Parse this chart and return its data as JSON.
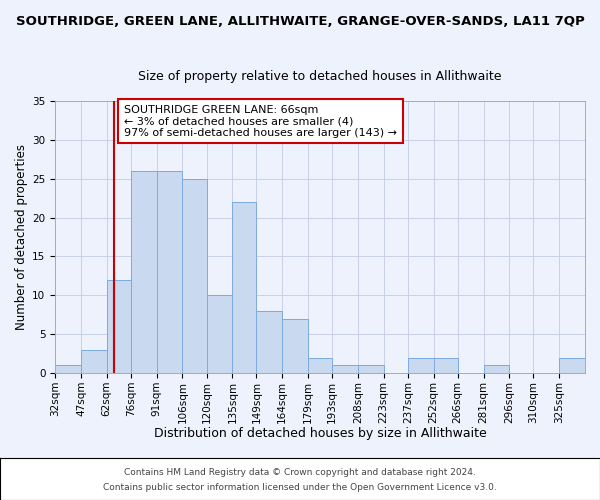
{
  "title": "SOUTHRIDGE, GREEN LANE, ALLITHWAITE, GRANGE-OVER-SANDS, LA11 7QP",
  "subtitle": "Size of property relative to detached houses in Allithwaite",
  "xlabel": "Distribution of detached houses by size in Allithwaite",
  "ylabel": "Number of detached properties",
  "bin_labels": [
    "32sqm",
    "47sqm",
    "62sqm",
    "76sqm",
    "91sqm",
    "106sqm",
    "120sqm",
    "135sqm",
    "149sqm",
    "164sqm",
    "179sqm",
    "193sqm",
    "208sqm",
    "223sqm",
    "237sqm",
    "252sqm",
    "266sqm",
    "281sqm",
    "296sqm",
    "310sqm",
    "325sqm"
  ],
  "bin_edges": [
    32,
    47,
    62,
    76,
    91,
    106,
    120,
    135,
    149,
    164,
    179,
    193,
    208,
    223,
    237,
    252,
    266,
    281,
    296,
    310,
    325,
    340
  ],
  "counts": [
    1,
    3,
    12,
    26,
    26,
    25,
    10,
    22,
    8,
    7,
    2,
    1,
    1,
    0,
    2,
    2,
    0,
    1,
    0,
    0,
    2
  ],
  "bar_color": "#c9d9f0",
  "bar_edge_color": "#7aabe0",
  "vline_x": 66,
  "vline_color": "#cc0000",
  "ylim": [
    0,
    35
  ],
  "yticks": [
    0,
    5,
    10,
    15,
    20,
    25,
    30,
    35
  ],
  "annotation_text": "SOUTHRIDGE GREEN LANE: 66sqm\n← 3% of detached houses are smaller (4)\n97% of semi-detached houses are larger (143) →",
  "annotation_box_edge": "#cc0000",
  "footer1": "Contains HM Land Registry data © Crown copyright and database right 2024.",
  "footer2": "Contains public sector information licensed under the Open Government Licence v3.0.",
  "background_color": "#eef2fc",
  "plot_bg_color": "#eef2fc",
  "grid_color": "#c8d0e8",
  "title_fontsize": 9.5,
  "subtitle_fontsize": 9,
  "xlabel_fontsize": 9,
  "ylabel_fontsize": 8.5,
  "tick_fontsize": 7.5,
  "annotation_fontsize": 8,
  "footer_fontsize": 6.5
}
